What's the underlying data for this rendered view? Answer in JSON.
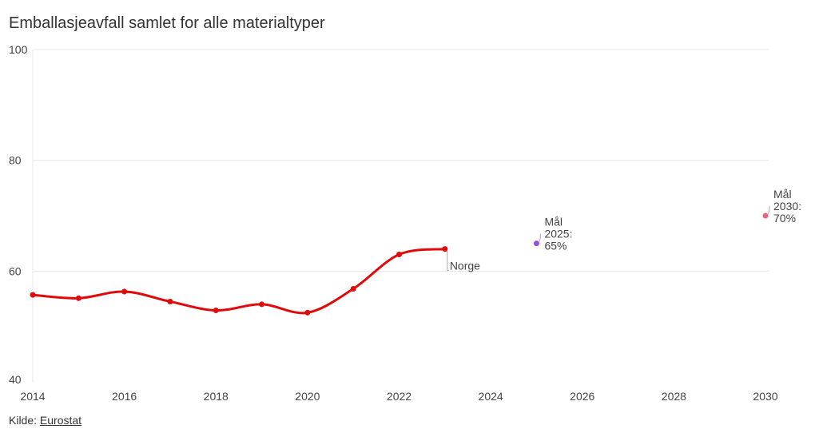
{
  "chart_data": {
    "type": "line",
    "title": "Emballasjeavfall samlet for alle materialtyper",
    "xlabel": "",
    "ylabel": "",
    "xlim": [
      2014,
      2030
    ],
    "ylim": [
      40,
      100
    ],
    "x_ticks": [
      "2014",
      "2016",
      "2018",
      "2020",
      "2022",
      "2024",
      "2026",
      "2028",
      "2030"
    ],
    "y_ticks": [
      "40",
      "60",
      "80",
      "100"
    ],
    "grid": true,
    "series": [
      {
        "name": "Norge",
        "color": "#e00a0a",
        "x": [
          2014,
          2015,
          2016,
          2017,
          2018,
          2019,
          2020,
          2021,
          2022,
          2023
        ],
        "values": [
          55.7,
          55.1,
          56.3,
          54.5,
          52.9,
          54.0,
          52.5,
          56.8,
          63.0,
          64.0
        ]
      }
    ],
    "targets": [
      {
        "year": 2025,
        "value": 65,
        "color": "#9b4fd6",
        "label": [
          "Mål",
          "2025:",
          "65%"
        ]
      },
      {
        "year": 2030,
        "value": 70,
        "color": "#e8657f",
        "label": [
          "Mål",
          "2030:",
          "70%"
        ]
      }
    ]
  },
  "source": {
    "prefix": "Kilde: ",
    "link": "Eurostat"
  }
}
